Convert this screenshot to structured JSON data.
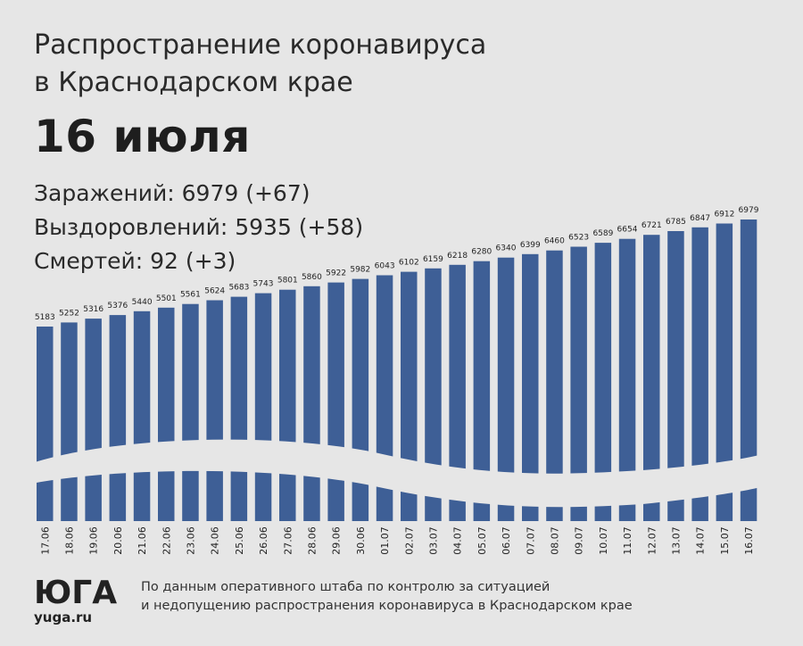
{
  "header": {
    "title_line1": "Распространение коронавируса",
    "title_line2": "в Краснодарском крае",
    "date": "16 июля"
  },
  "stats": {
    "infections": "Заражений: 6979 (+67)",
    "recoveries": "Выздоровлений: 5935 (+58)",
    "deaths": "Смертей: 92  (+3)"
  },
  "footer": {
    "logo_text": "ЮГА",
    "site": "yuga.ru",
    "source_line1": "По данным оперативного штаба по контролю за ситуацией",
    "source_line2": "и недопущению распространения коронавируса в Краснодарском крае"
  },
  "colors": {
    "background": "#e6e6e6",
    "bar": "#3e5f96",
    "text": "#222222"
  },
  "chart_data": {
    "type": "bar",
    "categories": [
      "17.06",
      "18.06",
      "19.06",
      "20.06",
      "21.06",
      "22.06",
      "23.06",
      "24.06",
      "25.06",
      "26.06",
      "27.06",
      "28.06",
      "29.06",
      "30.06",
      "01.07",
      "02.07",
      "03.07",
      "04.07",
      "05.07",
      "06.07",
      "07.07",
      "08.07",
      "09.07",
      "10.07",
      "11.07",
      "12.07",
      "13.07",
      "14.07",
      "15.07",
      "16.07"
    ],
    "values": [
      5183,
      5252,
      5316,
      5376,
      5440,
      5501,
      5561,
      5624,
      5683,
      5743,
      5801,
      5860,
      5922,
      5982,
      6043,
      6102,
      6159,
      6218,
      6280,
      6340,
      6399,
      6460,
      6523,
      6589,
      6654,
      6721,
      6785,
      6847,
      6912,
      6979
    ],
    "title": "",
    "xlabel": "",
    "ylabel": "",
    "grid": false,
    "legend": "none"
  }
}
